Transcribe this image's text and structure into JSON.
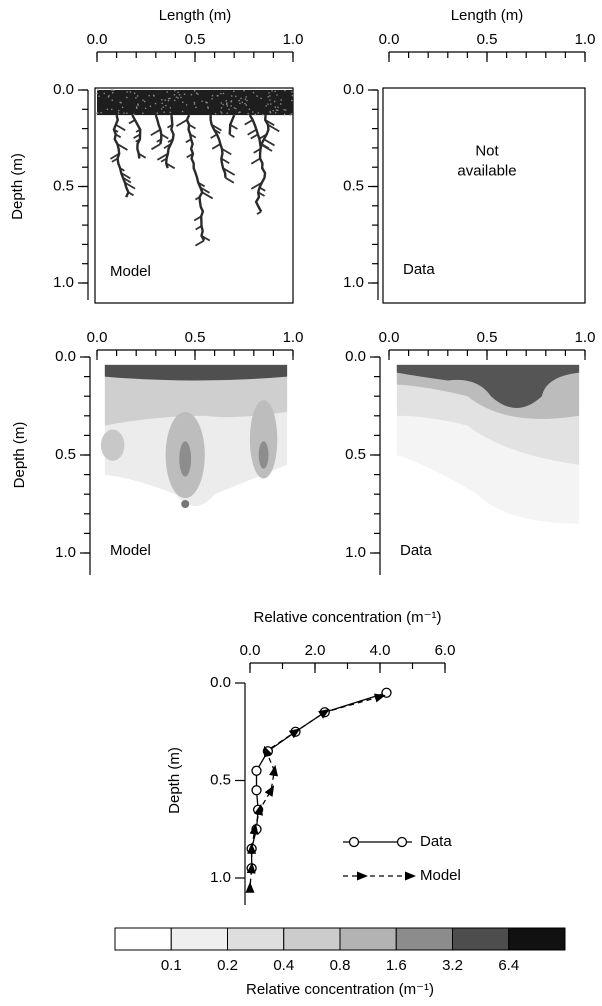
{
  "chart_data": [
    {
      "type": "image",
      "xlabel": "Length (m)",
      "ylabel": "Depth (m)",
      "label": "Model",
      "xlim": [
        0,
        1
      ],
      "xticks": [
        {
          "value": 0,
          "label": "0.0"
        },
        0.5,
        {
          "value": 1,
          "label": "1.0"
        }
      ],
      "ylim": [
        0,
        1
      ],
      "yticks": [
        {
          "value": 0,
          "label": "0.0"
        },
        0.5,
        {
          "value": 1,
          "label": "1.0"
        }
      ],
      "xminor": 0.1,
      "yminor": 0.1
    },
    {
      "type": "image",
      "xlabel": "Length (m)",
      "label": "Data",
      "annotation": [
        "Not",
        "available"
      ],
      "xlim": [
        0,
        1
      ],
      "xticks": [
        {
          "value": 0,
          "label": "0.0"
        },
        0.5,
        {
          "value": 1,
          "label": "1.0"
        }
      ],
      "ylim": [
        0,
        1
      ],
      "yticks": [
        {
          "value": 0,
          "label": "0.0"
        },
        0.5,
        {
          "value": 1,
          "label": "1.0"
        }
      ],
      "xminor": 0.1,
      "yminor": 0.1
    },
    {
      "type": "image",
      "ylabel": "Depth (m)",
      "label": "Model",
      "xlim": [
        0,
        1
      ],
      "xticks": [
        {
          "value": 0,
          "label": "0.0"
        },
        0.5,
        {
          "value": 1,
          "label": "1.0"
        }
      ],
      "ylim": [
        0,
        1
      ],
      "yticks": [
        {
          "value": 0,
          "label": "0.0"
        },
        0.5,
        {
          "value": 1,
          "label": "1.0"
        }
      ],
      "xminor": 0.1,
      "yminor": 0.1
    },
    {
      "type": "image",
      "label": "Data",
      "xlim": [
        0,
        1
      ],
      "xticks": [
        {
          "value": 0,
          "label": "0.0"
        },
        0.5,
        {
          "value": 1,
          "label": "1.0"
        }
      ],
      "ylim": [
        0,
        1
      ],
      "yticks": [
        {
          "value": 0,
          "label": "0.0"
        },
        0.5,
        {
          "value": 1,
          "label": "1.0"
        }
      ],
      "xminor": 0.1,
      "yminor": 0.1
    },
    {
      "type": "line",
      "xlabel": "Relative concentration (m⁻¹)",
      "ylabel": "Depth (m)",
      "xlim": [
        0,
        6
      ],
      "xticks": [
        {
          "value": 0,
          "label": "0.0"
        },
        {
          "value": 2,
          "label": "2.0"
        },
        {
          "value": 4,
          "label": "4.0"
        },
        {
          "value": 6,
          "label": "6.0"
        }
      ],
      "xminor": 1,
      "ylim": [
        0,
        1
      ],
      "yticks": [
        {
          "value": 0,
          "label": "0.0"
        },
        0.5,
        {
          "value": 1,
          "label": "1.0"
        }
      ],
      "series": [
        {
          "name": "Data",
          "color": "#000000",
          "x": [
            4.2,
            2.3,
            1.4,
            0.55,
            0.2,
            0.2,
            0.25,
            0.2,
            0.05,
            0.05
          ],
          "y": [
            0.05,
            0.15,
            0.25,
            0.35,
            0.45,
            0.55,
            0.65,
            0.75,
            0.85,
            0.95
          ]
        },
        {
          "name": "Model",
          "color": "#000000",
          "x": [
            4.0,
            2.3,
            1.4,
            0.5,
            0.75,
            0.65,
            0.3,
            0.15,
            0.05,
            0.05,
            0.0
          ],
          "y": [
            0.07,
            0.15,
            0.25,
            0.35,
            0.45,
            0.55,
            0.65,
            0.75,
            0.85,
            0.95,
            1.05
          ]
        }
      ]
    },
    {
      "type": "colorbar",
      "title": "Relative concentration (m⁻¹)",
      "colors": [
        "#ffffff",
        "#efefef",
        "#dedede",
        "#cccccc",
        "#b3b3b3",
        "#8c8c8c",
        "#4d4d4d",
        "#111111"
      ],
      "ticks": [
        0.1,
        0.2,
        0.4,
        0.8,
        1.6,
        3.2,
        6.4
      ]
    }
  ]
}
